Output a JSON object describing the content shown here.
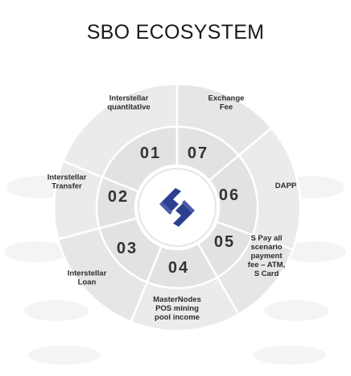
{
  "title": "SBO ECOSYSTEM",
  "logo_icon": "sbo-logo-icon",
  "colors": {
    "logo": "#2e3f8f",
    "segment": "#ececec",
    "divider": "#ffffff",
    "text": "#2b2b2b"
  },
  "segments": [
    {
      "number": "01",
      "label": [
        "Interstellar",
        "quantitative"
      ]
    },
    {
      "number": "07",
      "label": [
        "Exchange",
        "Fee"
      ]
    },
    {
      "number": "06",
      "label": [
        "DAPP"
      ]
    },
    {
      "number": "05",
      "label": [
        "S Pay all",
        "scenario",
        "payment",
        "fee – ATM,",
        "S Card"
      ]
    },
    {
      "number": "04",
      "label": [
        "MasterNodes",
        "POS  mining",
        "pool income"
      ]
    },
    {
      "number": "03",
      "label": [
        "Interstellar",
        "Loan"
      ]
    },
    {
      "number": "02",
      "label": [
        "Interstellar",
        "Transfer"
      ]
    }
  ]
}
